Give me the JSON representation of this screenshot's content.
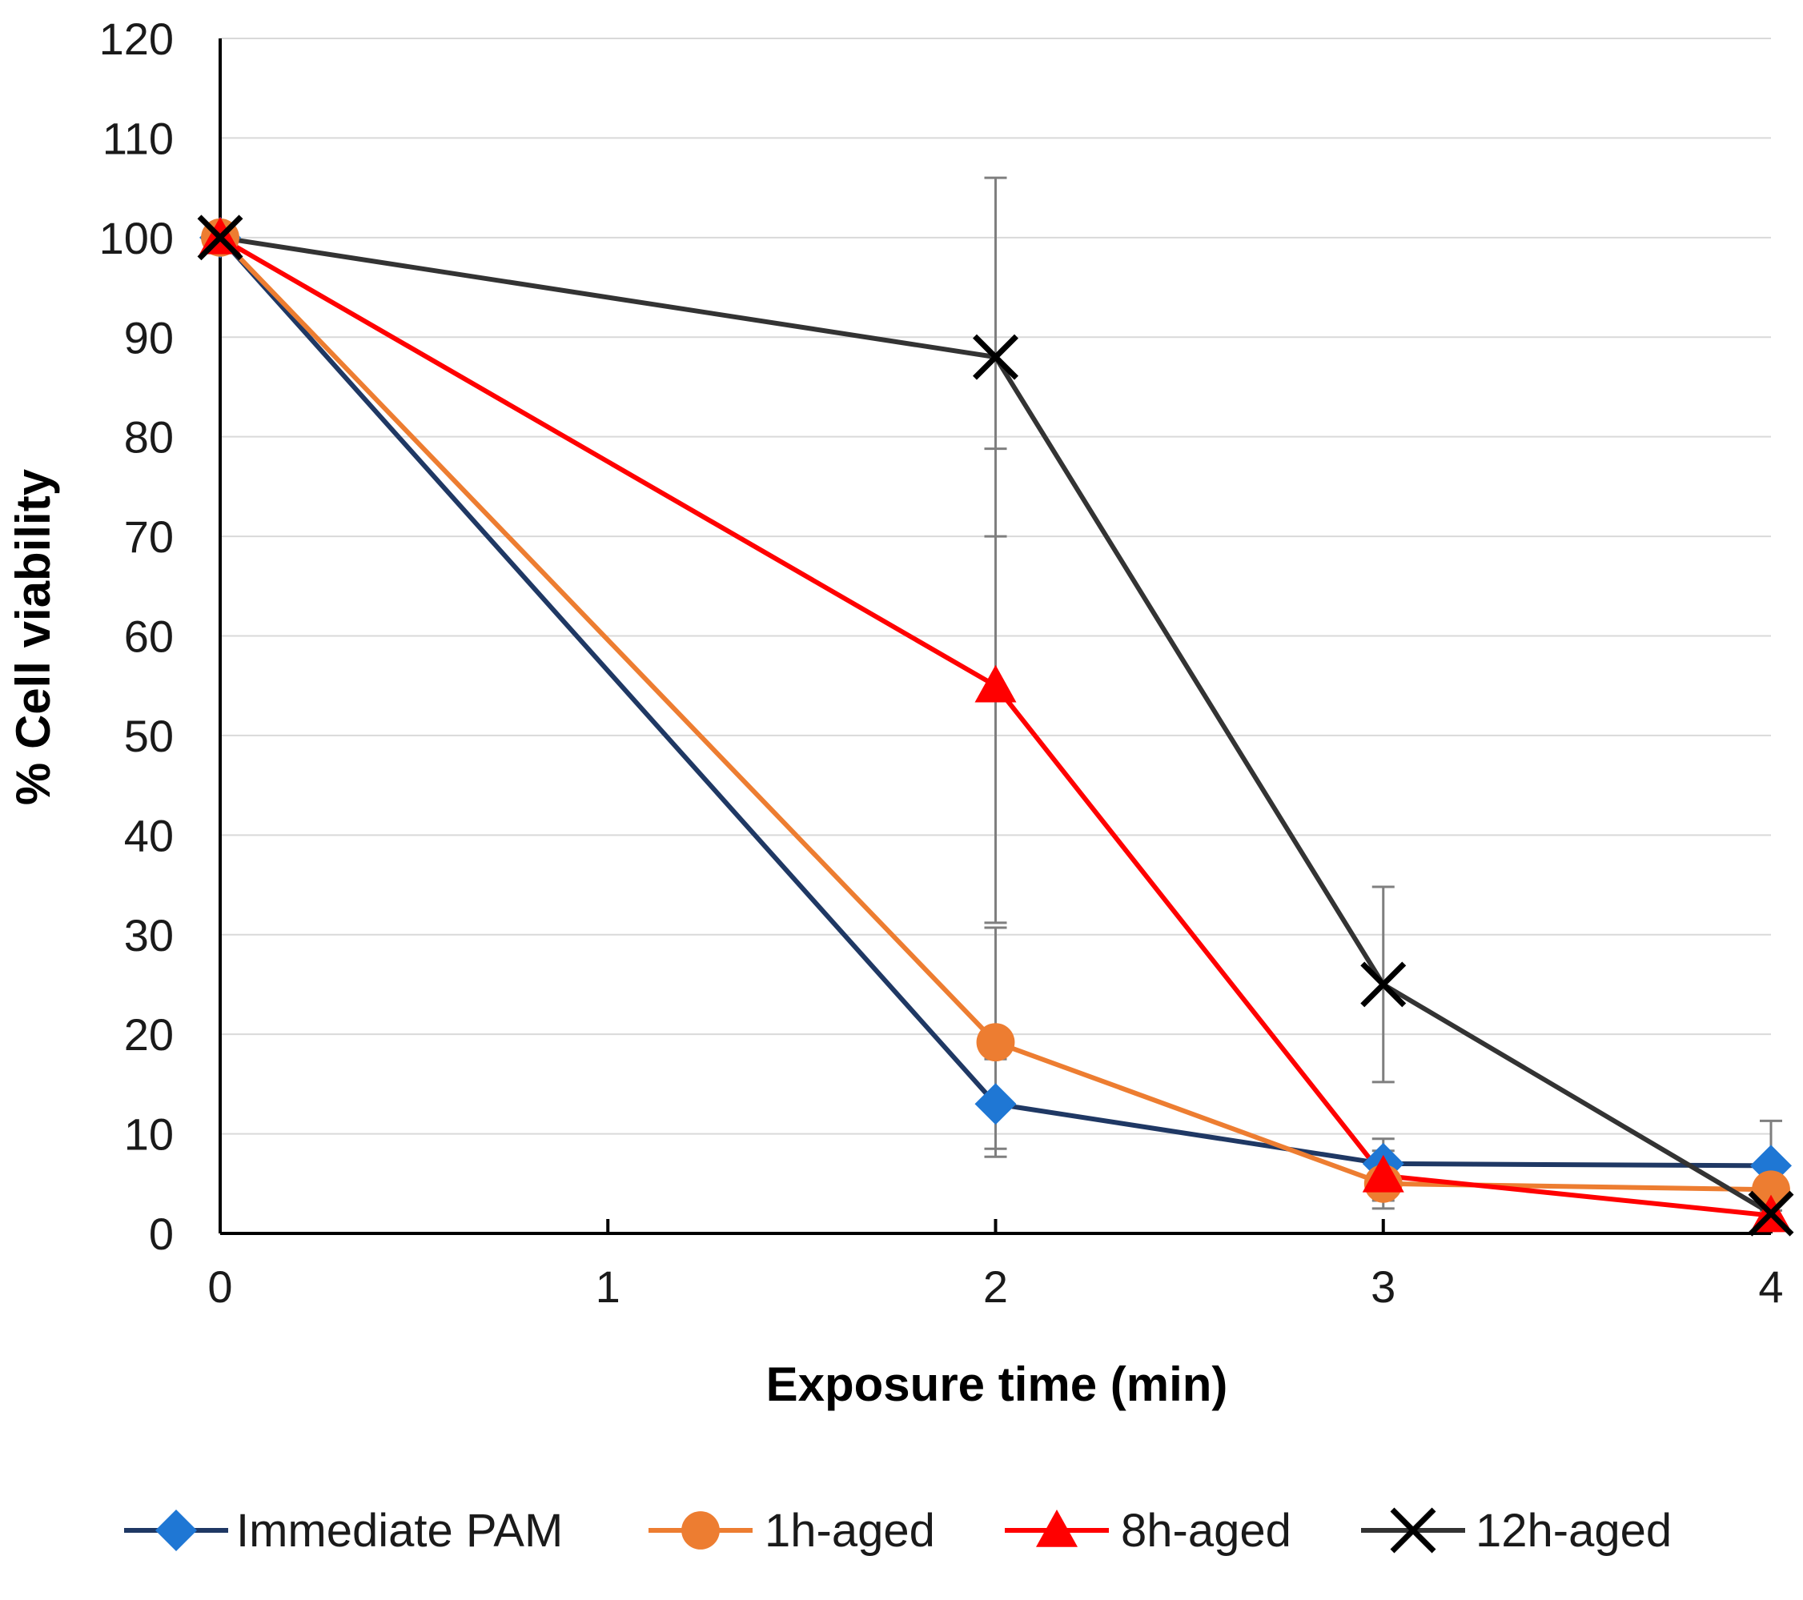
{
  "chart_data": {
    "type": "line",
    "xlabel": "Exposure time (min)",
    "ylabel": "% Cell viability",
    "xlim": [
      0,
      4
    ],
    "ylim": [
      0,
      120
    ],
    "x_ticks": [
      0,
      1,
      2,
      3,
      4
    ],
    "y_ticks": [
      0,
      10,
      20,
      30,
      40,
      50,
      60,
      70,
      80,
      90,
      100,
      110,
      120
    ],
    "grid": "horizontal",
    "legend_position": "bottom",
    "series": [
      {
        "name": "Immediate PAM",
        "line_color": "#1f3864",
        "marker_color": "#1f77d4",
        "marker": "diamond",
        "x": [
          0,
          2,
          3,
          4
        ],
        "y": [
          100,
          13,
          7,
          6.8
        ],
        "error": [
          0,
          4.5,
          2.5,
          4.5
        ]
      },
      {
        "name": "1h-aged",
        "line_color": "#ed7d31",
        "marker_color": "#ed7d31",
        "marker": "circle",
        "x": [
          0,
          2,
          3,
          4
        ],
        "y": [
          100,
          19.2,
          5,
          4.4
        ],
        "error": [
          0,
          11.5,
          2.5,
          0
        ]
      },
      {
        "name": "8h-aged",
        "line_color": "#ff0000",
        "marker_color": "#ff0000",
        "marker": "triangle",
        "x": [
          0,
          2,
          3,
          4
        ],
        "y": [
          100,
          55,
          5.8,
          1.8
        ],
        "error": [
          0,
          23.8,
          2.5,
          0
        ]
      },
      {
        "name": "12h-aged",
        "line_color": "#333333",
        "marker_color": "#000000",
        "marker": "x",
        "x": [
          0,
          2,
          3,
          4
        ],
        "y": [
          100,
          88,
          25,
          2
        ],
        "error": [
          0,
          18,
          9.8,
          0
        ]
      }
    ]
  }
}
